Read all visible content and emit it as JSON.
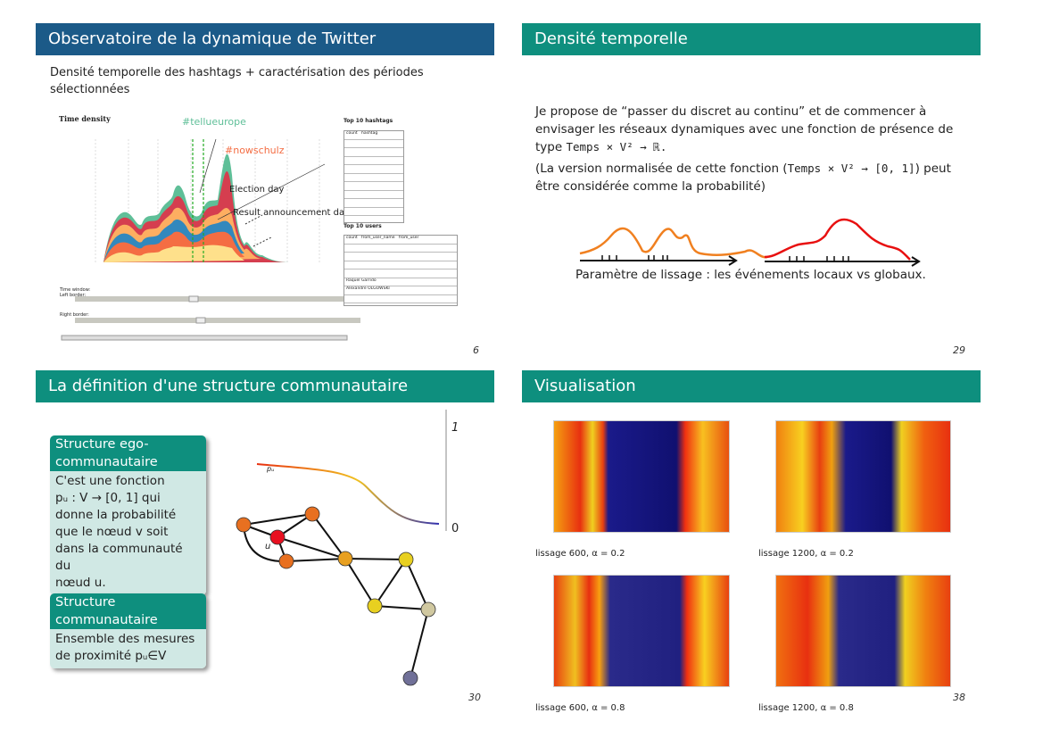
{
  "slides": [
    {
      "title": "Observatoire de la dynamique de Twitter",
      "subtitle": "Densité temporelle des hashtags + caractérisation des périodes sélectionnées",
      "page": "6",
      "figure": {
        "title": "Time density",
        "annotations": [
          "#tellueurope",
          "#nowschulz",
          "Election day",
          "Result announcement day"
        ],
        "hashtags_title": "Top 10 hashtags",
        "hashtags_headers": [
          "count",
          "hashtag"
        ],
        "users_title": "Top 10 users",
        "users_headers": [
          "count",
          "from_user_name",
          "from_user"
        ],
        "users_visible": [
          "Raquel Garrido",
          "Alexandre OLGOWSKI"
        ],
        "time_window": "Time window:",
        "left_border": "Left border:",
        "right_border": "Right border:",
        "header_color": "#1b5a88"
      }
    },
    {
      "title": "Densité temporelle",
      "page": "29",
      "p1": "Je propose de “passer du discret au continu” et de commencer à envisager les réseaux dynamiques avec une fonction de présence de type",
      "p1_math": "Temps × V² → ℝ.",
      "p2a": "(La version normalisée de cette fonction (",
      "p2_math": "Temps × V² → [0, 1]",
      "p2b": ") peut être considérée comme la probabilité)",
      "caption": "Paramètre de lissage : les événements locaux vs globaux.",
      "curve_colors": [
        "#f08020",
        "#e81010"
      ]
    },
    {
      "title": "La définition d'une structure communautaire",
      "page": "30",
      "block1_title": "Structure ego-communautaire",
      "block1_body": [
        "C'est une fonction",
        "pᵤ : V → [0, 1] qui",
        "donne la probabilité",
        "que le nœud v soit",
        "dans la communauté du",
        "nœud u."
      ],
      "block2_title": "Structure communautaire",
      "block2_body": [
        "Ensemble des mesures",
        "de proximité pᵤ∈V"
      ],
      "axis_top": "1",
      "axis_bottom": "0",
      "curve_label": "pᵤ",
      "node_label": "u"
    },
    {
      "title": "Visualisation",
      "page": "38",
      "captions": [
        "lissage 600, α = 0.2",
        "lissage 1200, α = 0.2",
        "lissage 600, α = 0.8",
        "lissage 1200, α = 0.8"
      ]
    }
  ]
}
